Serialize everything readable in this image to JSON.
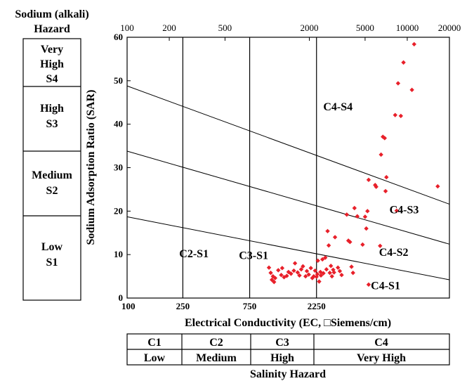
{
  "sodium_panel": {
    "title_line1": "Sodium (alkali)",
    "title_line2": "Hazard",
    "classes": [
      {
        "lines": [
          "Very",
          "High",
          "S4"
        ]
      },
      {
        "lines": [
          "High",
          "S3"
        ]
      },
      {
        "lines": [
          "Medium",
          "S2"
        ]
      },
      {
        "lines": [
          "Low",
          "S1"
        ]
      }
    ]
  },
  "salinity_panel": {
    "classes": [
      "C1",
      "C2",
      "C3",
      "C4"
    ],
    "levels": [
      "Low",
      "Medium",
      "High",
      "Very High"
    ],
    "title": "Salinity Hazard"
  },
  "chart_data": {
    "type": "scatter",
    "xlabel": "Electrical Conductivity (EC, □Siemens/cm)",
    "ylabel": "Sodium Adsorption Ratio (SAR)",
    "x_scale": "log",
    "xlim": [
      100,
      20000
    ],
    "ylim": [
      0,
      60
    ],
    "y_ticks": [
      0,
      10,
      20,
      30,
      40,
      50,
      60
    ],
    "x_ticks_bottom": [
      100,
      250,
      750,
      2250
    ],
    "x_ticks_top": [
      100,
      200,
      500,
      2000,
      5000,
      10000,
      20000
    ],
    "class_boundaries_ec": [
      250,
      750,
      2250
    ],
    "marker_color": "#e8202a",
    "boundary_lines": [
      {
        "between": "S1-S2",
        "points": [
          [
            100,
            18.7
          ],
          [
            20000,
            4.2
          ]
        ]
      },
      {
        "between": "S2-S3",
        "points": [
          [
            100,
            33.8
          ],
          [
            20000,
            12.4
          ]
        ]
      },
      {
        "between": "S3-S4",
        "points": [
          [
            100,
            48.8
          ],
          [
            20000,
            21.6
          ]
        ]
      }
    ],
    "region_labels": [
      {
        "text": "C4-S4",
        "x": 3200,
        "y": 44
      },
      {
        "text": "C4-S3",
        "x": 9500,
        "y": 20.3
      },
      {
        "text": "C4-S2",
        "x": 8000,
        "y": 10.5
      },
      {
        "text": "C4-S1",
        "x": 7000,
        "y": 2.8
      },
      {
        "text": "C2-S1",
        "x": 300,
        "y": 10.2
      },
      {
        "text": "C3-S1",
        "x": 800,
        "y": 9.8
      }
    ],
    "points": [
      [
        1030,
        7.0
      ],
      [
        1060,
        5.8
      ],
      [
        1080,
        4.2
      ],
      [
        1100,
        5.0
      ],
      [
        1120,
        3.7
      ],
      [
        1140,
        4.6
      ],
      [
        1200,
        6.4
      ],
      [
        1260,
        5.3
      ],
      [
        1280,
        6.9
      ],
      [
        1320,
        4.8
      ],
      [
        1380,
        5.1
      ],
      [
        1420,
        6.0
      ],
      [
        1480,
        5.6
      ],
      [
        1550,
        6.3
      ],
      [
        1580,
        8.0
      ],
      [
        1650,
        5.9
      ],
      [
        1700,
        5.2
      ],
      [
        1750,
        6.6
      ],
      [
        1800,
        7.3
      ],
      [
        1880,
        5.0
      ],
      [
        1920,
        6.2
      ],
      [
        1980,
        5.4
      ],
      [
        2050,
        6.9
      ],
      [
        2100,
        4.6
      ],
      [
        2150,
        5.0
      ],
      [
        2200,
        6.3
      ],
      [
        2250,
        4.9
      ],
      [
        2280,
        5.5
      ],
      [
        2300,
        8.6
      ],
      [
        2350,
        3.8
      ],
      [
        2400,
        6.0
      ],
      [
        2420,
        5.2
      ],
      [
        2480,
        8.9
      ],
      [
        2520,
        5.7
      ],
      [
        2600,
        9.3
      ],
      [
        2650,
        6.6
      ],
      [
        2700,
        15.4
      ],
      [
        2750,
        12.1
      ],
      [
        2800,
        5.8
      ],
      [
        2850,
        7.4
      ],
      [
        2900,
        5.0
      ],
      [
        2960,
        6.5
      ],
      [
        3000,
        5.9
      ],
      [
        3050,
        14.0
      ],
      [
        3200,
        7.0
      ],
      [
        3300,
        6.2
      ],
      [
        3400,
        5.3
      ],
      [
        3700,
        19.2
      ],
      [
        3800,
        13.2
      ],
      [
        3900,
        12.9
      ],
      [
        4000,
        7.2
      ],
      [
        4100,
        5.8
      ],
      [
        4200,
        20.7
      ],
      [
        4400,
        18.8
      ],
      [
        4800,
        12.3
      ],
      [
        5000,
        18.7
      ],
      [
        5100,
        16.0
      ],
      [
        5200,
        20.0
      ],
      [
        5300,
        27.2
      ],
      [
        5300,
        3.1
      ],
      [
        5900,
        26.0
      ],
      [
        6000,
        25.6
      ],
      [
        6400,
        12.0
      ],
      [
        6500,
        33.0
      ],
      [
        6700,
        37.1
      ],
      [
        6900,
        36.8
      ],
      [
        7000,
        24.6
      ],
      [
        7100,
        27.8
      ],
      [
        8200,
        42.1
      ],
      [
        8400,
        20.1
      ],
      [
        8600,
        49.4
      ],
      [
        9000,
        41.9
      ],
      [
        9400,
        54.2
      ],
      [
        10800,
        47.9
      ],
      [
        11200,
        58.4
      ],
      [
        16500,
        25.7
      ]
    ]
  }
}
